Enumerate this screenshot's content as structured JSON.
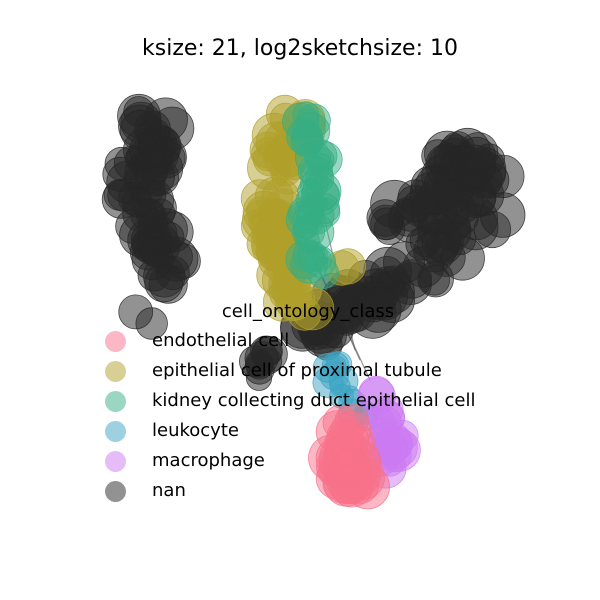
{
  "chart_data": {
    "type": "scatter",
    "title": "ksize: 21, log2sketchsize: 10",
    "xlabel": "",
    "ylabel": "",
    "axes_visible": false,
    "grid": false,
    "legend": {
      "title": "cell_ontology_class",
      "placement": "center-bottom overlapping plot"
    },
    "series": [
      {
        "name": "endothelial cell",
        "color": "#f77189",
        "alpha": 0.5
      },
      {
        "name": "epithelial cell of proximal tubule",
        "color": "#b0a02a",
        "alpha": 0.5
      },
      {
        "name": "kidney collecting duct epithelial cell",
        "color": "#36ad84",
        "alpha": 0.5
      },
      {
        "name": "leukocyte",
        "color": "#3ba3c3",
        "alpha": 0.5
      },
      {
        "name": "macrophage",
        "color": "#cc79f2",
        "alpha": 0.5
      },
      {
        "name": "nan",
        "color": "#262626",
        "alpha": 0.5
      }
    ]
  }
}
